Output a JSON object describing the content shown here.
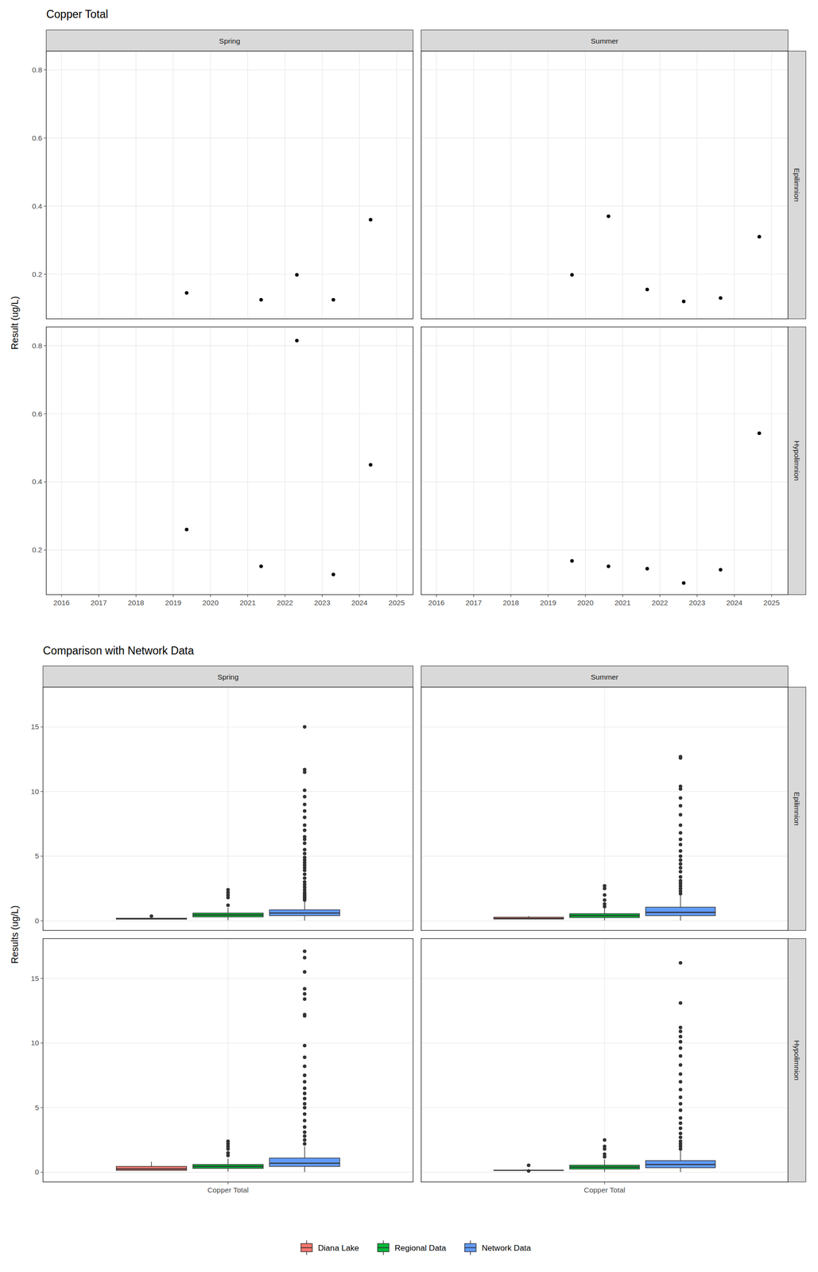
{
  "chart_data": [
    {
      "type": "scatter",
      "title": "Copper Total",
      "y_label": "Result (ug/L)",
      "color": "#000000",
      "grid": true,
      "columns": [
        "Spring",
        "Summer"
      ],
      "rows": [
        "Epilimnion",
        "Hypolimnion"
      ],
      "xlim": [
        2015.59,
        2025.44
      ],
      "xticks": [
        2016,
        2017,
        2018,
        2019,
        2020,
        2021,
        2022,
        2023,
        2024,
        2025
      ],
      "ylim": [
        0.069,
        0.855
      ],
      "yticks": [
        0.2,
        0.4,
        0.6,
        0.8
      ],
      "panels": [
        {
          "column": "Spring",
          "row": "Epilimnion",
          "x": [
            2019.36,
            2021.36,
            2022.32,
            2023.3,
            2024.3
          ],
          "values": [
            0.145,
            0.125,
            0.198,
            0.125,
            0.36
          ]
        },
        {
          "column": "Summer",
          "row": "Epilimnion",
          "x": [
            2019.64,
            2020.62,
            2021.66,
            2022.64,
            2023.63,
            2024.67
          ],
          "values": [
            0.198,
            0.37,
            0.155,
            0.12,
            0.13,
            0.31
          ]
        },
        {
          "column": "Spring",
          "row": "Hypolimnion",
          "x": [
            2019.36,
            2021.36,
            2022.32,
            2023.3,
            2024.3
          ],
          "values": [
            0.26,
            0.152,
            0.815,
            0.128,
            0.45
          ]
        },
        {
          "column": "Summer",
          "row": "Hypolimnion",
          "x": [
            2019.64,
            2020.62,
            2021.66,
            2022.64,
            2023.63,
            2024.67
          ],
          "values": [
            0.168,
            0.152,
            0.145,
            0.103,
            0.142,
            0.543
          ]
        }
      ]
    },
    {
      "type": "box",
      "title": "Comparison with Network Data",
      "y_label": "Results (ug/L)",
      "grid": true,
      "legend": "bottom",
      "columns": [
        "Spring",
        "Summer"
      ],
      "rows": [
        "Epilimnion",
        "Hypolimnion"
      ],
      "categories": [
        "Copper Total"
      ],
      "ylim": [
        -0.75,
        18.08
      ],
      "yticks": [
        0,
        5,
        10,
        15
      ],
      "series": [
        {
          "name": "Diana Lake",
          "color": "#F8766D"
        },
        {
          "name": "Regional Data",
          "color": "#00BA38"
        },
        {
          "name": "Network Data",
          "color": "#619CFF"
        }
      ],
      "panels": [
        {
          "column": "Spring",
          "row": "Epilimnion",
          "boxes": [
            {
              "min": 0.125,
              "q1": 0.125,
              "median": 0.145,
              "q3": 0.198,
              "max": 0.198,
              "outliers": [
                0.36
              ]
            },
            {
              "min": 0.05,
              "q1": 0.3,
              "median": 0.45,
              "q3": 0.6,
              "max": 1.0,
              "outliers": [
                1.2,
                1.8,
                2.0,
                2.2,
                2.4
              ]
            },
            {
              "min": 0.02,
              "q1": 0.4,
              "median": 0.6,
              "q3": 0.85,
              "max": 1.5,
              "outliers": [
                1.6,
                1.7,
                1.8,
                1.9,
                2.0,
                2.1,
                2.2,
                2.4,
                2.6,
                2.8,
                3.0,
                3.3,
                3.6,
                3.9,
                4.1,
                4.3,
                4.5,
                4.7,
                4.9,
                5.2,
                5.5,
                6.0,
                6.3,
                6.5,
                7.0,
                7.4,
                8.0,
                8.5,
                9.0,
                9.6,
                10.1,
                11.5,
                11.7,
                15.0
              ]
            }
          ]
        },
        {
          "column": "Summer",
          "row": "Epilimnion",
          "boxes": [
            {
              "min": 0.12,
              "q1": 0.137,
              "median": 0.177,
              "q3": 0.28,
              "max": 0.37,
              "outliers": []
            },
            {
              "min": 0.03,
              "q1": 0.25,
              "median": 0.4,
              "q3": 0.55,
              "max": 1.0,
              "outliers": [
                1.1,
                1.3,
                1.6,
                2.0,
                2.5,
                2.7
              ]
            },
            {
              "min": 0.02,
              "q1": 0.4,
              "median": 0.65,
              "q3": 1.05,
              "max": 2.0,
              "outliers": [
                2.1,
                2.3,
                2.5,
                2.7,
                2.9,
                3.1,
                3.4,
                3.8,
                4.1,
                4.4,
                4.7,
                5.0,
                5.4,
                5.9,
                6.3,
                6.8,
                7.4,
                8.2,
                8.9,
                9.5,
                10.2,
                10.4,
                12.6,
                12.7
              ]
            }
          ]
        },
        {
          "column": "Spring",
          "row": "Hypolimnion",
          "boxes": [
            {
              "min": 0.128,
              "q1": 0.152,
              "median": 0.26,
              "q3": 0.45,
              "max": 0.815,
              "outliers": []
            },
            {
              "min": 0.05,
              "q1": 0.3,
              "median": 0.45,
              "q3": 0.6,
              "max": 1.05,
              "outliers": [
                1.3,
                1.5,
                1.8,
                2.0,
                2.2,
                2.4
              ]
            },
            {
              "min": 0.02,
              "q1": 0.45,
              "median": 0.7,
              "q3": 1.1,
              "max": 2.0,
              "outliers": [
                2.2,
                2.5,
                2.8,
                3.1,
                3.5,
                4.0,
                4.5,
                5.0,
                5.3,
                5.7,
                6.1,
                6.5,
                7.0,
                7.5,
                8.2,
                8.9,
                9.8,
                12.1,
                12.2,
                13.4,
                13.8,
                14.2,
                15.5,
                16.6,
                17.1
              ]
            }
          ]
        },
        {
          "column": "Summer",
          "row": "Hypolimnion",
          "boxes": [
            {
              "min": 0.142,
              "q1": 0.142,
              "median": 0.149,
              "q3": 0.164,
              "max": 0.168,
              "outliers": [
                0.103,
                0.543
              ]
            },
            {
              "min": 0.03,
              "q1": 0.25,
              "median": 0.4,
              "q3": 0.55,
              "max": 1.0,
              "outliers": [
                1.2,
                1.4,
                1.8,
                2.0,
                2.5
              ]
            },
            {
              "min": 0.02,
              "q1": 0.35,
              "median": 0.6,
              "q3": 0.9,
              "max": 1.7,
              "outliers": [
                1.8,
                2.0,
                2.2,
                2.4,
                2.7,
                3.0,
                3.4,
                3.8,
                4.2,
                4.8,
                5.3,
                5.8,
                6.4,
                7.0,
                7.6,
                8.3,
                9.0,
                9.6,
                10.1,
                10.5,
                10.9,
                11.2,
                13.1,
                16.2
              ]
            }
          ]
        }
      ]
    }
  ]
}
